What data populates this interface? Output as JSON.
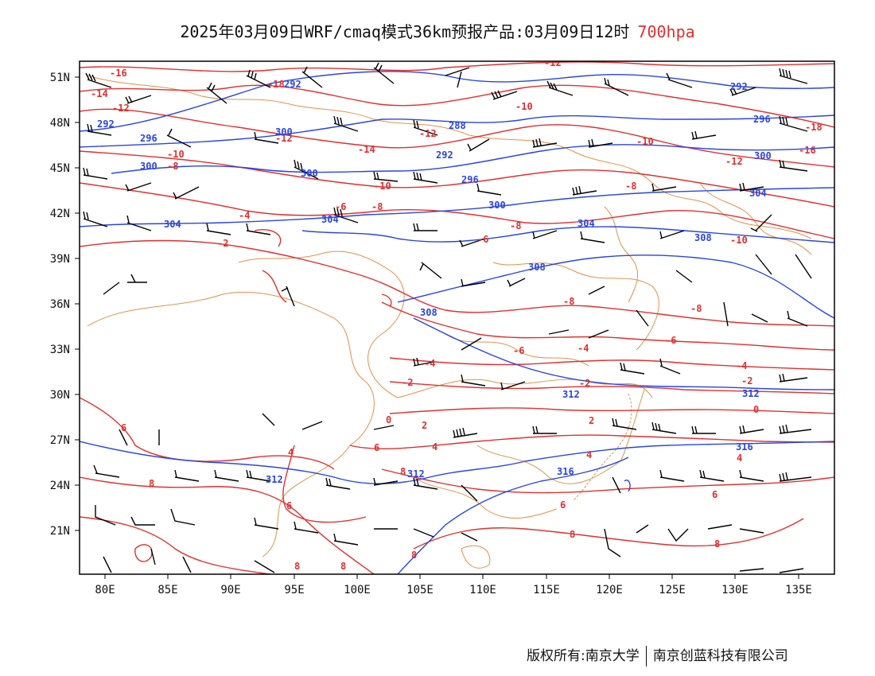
{
  "header": {
    "title": "2025年03月09日WRF/cmaq模式36km预报产品:03月09日12时",
    "level": "700hpa"
  },
  "axes": {
    "lat_labels": [
      "51N",
      "48N",
      "45N",
      "42N",
      "39N",
      "36N",
      "33N",
      "30N",
      "27N",
      "24N",
      "21N"
    ],
    "lon_labels": [
      "80E",
      "85E",
      "90E",
      "95E",
      "100E",
      "105E",
      "110E",
      "115E",
      "120E",
      "125E",
      "130E",
      "135E"
    ]
  },
  "contours": {
    "temperature_color": "#e03030",
    "height_color": "#2a45e0",
    "boundary_color": "#e0924a",
    "barb_color": "#000000",
    "temperature_labels": [
      "-16",
      "-14",
      "-12",
      "-10",
      "-8",
      "-6",
      "-4",
      "-2",
      "0",
      "2",
      "4",
      "6",
      "8",
      "-18"
    ],
    "height_labels": [
      "292",
      "296",
      "300",
      "304",
      "308",
      "312",
      "316"
    ]
  },
  "footer": {
    "owner": "版权所有:南京大学",
    "company": "南京创蓝科技有限公司"
  }
}
